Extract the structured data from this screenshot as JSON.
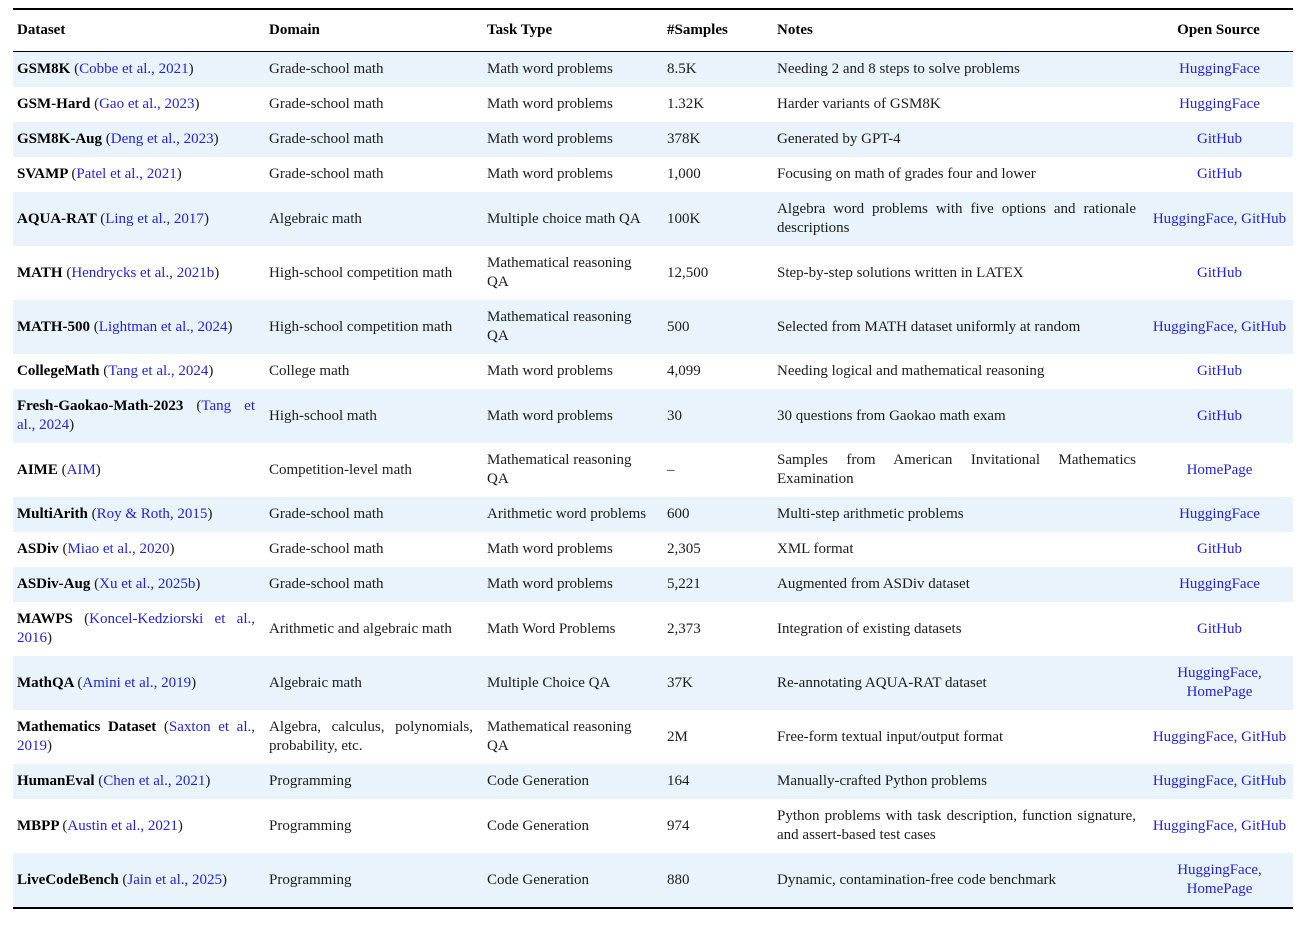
{
  "colors": {
    "stripe": "#e8f3fb",
    "link_blue": "#2323dd",
    "rule": "#000000",
    "text": "#1c1c1c"
  },
  "table": {
    "columns": [
      {
        "key": "dataset",
        "label": "Dataset"
      },
      {
        "key": "domain",
        "label": "Domain"
      },
      {
        "key": "task",
        "label": "Task Type"
      },
      {
        "key": "samples",
        "label": "#Samples"
      },
      {
        "key": "notes",
        "label": "Notes"
      },
      {
        "key": "open",
        "label": "Open Source"
      }
    ],
    "rows": [
      {
        "name": "GSM8K",
        "cite": "Cobbe et al., 2021",
        "domain": "Grade-school math",
        "task": "Math word problems",
        "samples": "8.5K",
        "notes": "Needing 2 and 8 steps to solve problems",
        "open": [
          "HuggingFace"
        ]
      },
      {
        "name": "GSM-Hard",
        "cite": "Gao et al., 2023",
        "domain": "Grade-school math",
        "task": "Math word problems",
        "samples": "1.32K",
        "notes": "Harder variants of GSM8K",
        "open": [
          "HuggingFace"
        ]
      },
      {
        "name": "GSM8K-Aug",
        "cite": "Deng et al., 2023",
        "domain": "Grade-school math",
        "task": "Math word problems",
        "samples": "378K",
        "notes": "Generated by GPT-4",
        "open": [
          "GitHub"
        ]
      },
      {
        "name": "SVAMP",
        "cite": "Patel et al., 2021",
        "domain": "Grade-school math",
        "task": "Math word problems",
        "samples": "1,000",
        "notes": "Focusing on math of grades four and lower",
        "open": [
          "GitHub"
        ]
      },
      {
        "name": "AQUA-RAT",
        "cite": "Ling et al., 2017",
        "domain": "Algebraic math",
        "task": "Multiple choice math QA",
        "samples": "100K",
        "notes": "Algebra word problems with five options and rationale descriptions",
        "open": [
          "HuggingFace",
          "GitHub"
        ]
      },
      {
        "name": "MATH",
        "cite": "Hendrycks et al., 2021b",
        "domain": "High-school competition math",
        "task": "Mathematical reasoning QA",
        "samples": "12,500",
        "notes": "Step-by-step solutions written in LATEX",
        "open": [
          "GitHub"
        ]
      },
      {
        "name": "MATH-500",
        "cite": "Lightman et al., 2024",
        "domain": "High-school competition math",
        "task": "Mathematical reasoning QA",
        "samples": "500",
        "notes": "Selected from MATH dataset uniformly at random",
        "open": [
          "HuggingFace",
          "GitHub"
        ]
      },
      {
        "name": "CollegeMath",
        "cite": "Tang et al., 2024",
        "domain": "College math",
        "task": "Math word problems",
        "samples": "4,099",
        "notes": "Needing logical and mathematical reasoning",
        "open": [
          "GitHub"
        ]
      },
      {
        "name": "Fresh-Gaokao-Math-2023",
        "cite": "Tang et al., 2024",
        "domain": "High-school math",
        "task": "Math word problems",
        "samples": "30",
        "notes": "30 questions from Gaokao math exam",
        "open": [
          "GitHub"
        ]
      },
      {
        "name": "AIME",
        "cite": "AIM",
        "domain": "Competition-level math",
        "task": "Mathematical reasoning QA",
        "samples": "–",
        "notes": "Samples from American Invitational Mathematics Examination",
        "open": [
          "HomePage"
        ]
      },
      {
        "name": "MultiArith",
        "cite": "Roy & Roth, 2015",
        "domain": "Grade-school math",
        "task": "Arithmetic word problems",
        "samples": "600",
        "notes": "Multi-step arithmetic problems",
        "open": [
          "HuggingFace"
        ]
      },
      {
        "name": "ASDiv",
        "cite": "Miao et al., 2020",
        "domain": "Grade-school math",
        "task": "Math word problems",
        "samples": "2,305",
        "notes": "XML format",
        "open": [
          "GitHub"
        ]
      },
      {
        "name": "ASDiv-Aug",
        "cite": "Xu et al., 2025b",
        "domain": "Grade-school math",
        "task": "Math word problems",
        "samples": "5,221",
        "notes": "Augmented from ASDiv dataset",
        "open": [
          "HuggingFace"
        ]
      },
      {
        "name": "MAWPS",
        "cite": "Koncel-Kedziorski et al., 2016",
        "domain": "Arithmetic and algebraic math",
        "task": "Math Word Problems",
        "samples": "2,373",
        "notes": "Integration of existing datasets",
        "open": [
          "GitHub"
        ]
      },
      {
        "name": "MathQA",
        "cite": "Amini et al., 2019",
        "domain": "Algebraic math",
        "task": "Multiple Choice QA",
        "samples": "37K",
        "notes": "Re-annotating AQUA-RAT dataset",
        "open": [
          "HuggingFace",
          "HomePage"
        ]
      },
      {
        "name": "Mathematics Dataset",
        "cite": "Saxton et al., 2019",
        "domain": "Algebra, calculus, polynomials, probability, etc.",
        "task": "Mathematical reasoning QA",
        "samples": "2M",
        "notes": "Free-form textual input/output format",
        "open": [
          "HuggingFace",
          "GitHub"
        ]
      },
      {
        "name": "HumanEval",
        "cite": "Chen et al., 2021",
        "domain": "Programming",
        "task": "Code Generation",
        "samples": "164",
        "notes": "Manually-crafted Python problems",
        "open": [
          "HuggingFace",
          "GitHub"
        ]
      },
      {
        "name": "MBPP",
        "cite": "Austin et al., 2021",
        "domain": "Programming",
        "task": "Code Generation",
        "samples": "974",
        "notes": "Python problems with task description, function signature, and assert-based test cases",
        "open": [
          "HuggingFace",
          "GitHub"
        ]
      },
      {
        "name": "LiveCodeBench",
        "cite": "Jain et al., 2025",
        "domain": "Programming",
        "task": "Code Generation",
        "samples": "880",
        "notes": "Dynamic, contamination-free code benchmark",
        "open": [
          "HuggingFace",
          "HomePage"
        ]
      }
    ]
  }
}
